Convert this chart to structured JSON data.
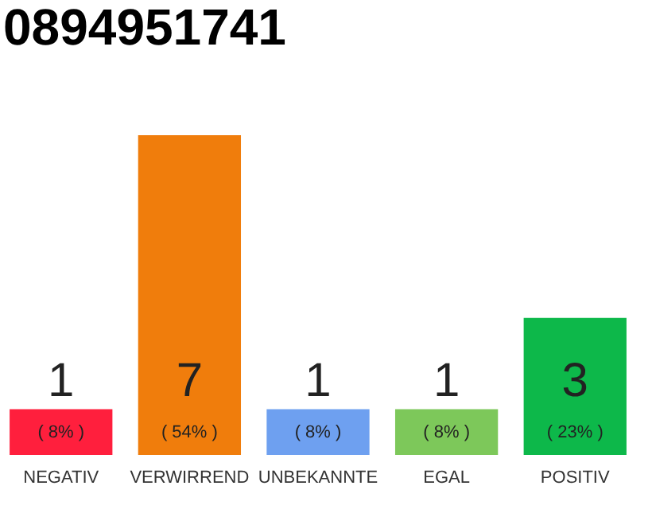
{
  "chart_data": {
    "type": "bar",
    "title": "0894951741",
    "categories": [
      "NEGATIV",
      "VERWIRREND",
      "UNBEKANNTE",
      "EGAL",
      "POSITIV"
    ],
    "values": [
      1,
      7,
      1,
      1,
      3
    ],
    "colors": [
      "#ff1f3d",
      "#f07d0c",
      "#6ea0f0",
      "#7dc85a",
      "#0db84a"
    ],
    "ylim": [
      0,
      7
    ],
    "data_labels": true,
    "tick_labels": "x",
    "annotations": [
      "( 8% )",
      "( 54% )",
      "( 8% )",
      "( 8% )",
      "( 23% )"
    ]
  }
}
